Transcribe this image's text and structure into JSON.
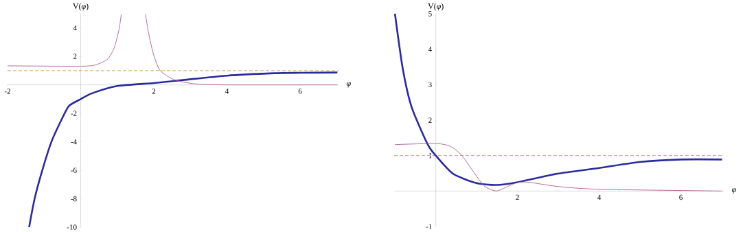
{
  "chart_data": [
    {
      "type": "line",
      "xlabel": "*φ*",
      "ylabel": "V(*φ*)",
      "xlim": [
        -2,
        7.05
      ],
      "ylim": [
        -10,
        5
      ],
      "xticks": [
        -2,
        2,
        4,
        6
      ],
      "yticks": [
        -10,
        -8,
        -6,
        -4,
        -2,
        2,
        4
      ],
      "grid": false,
      "legend": false,
      "series": [
        {
          "color": "#2b2b9c",
          "x": [
            -1.41,
            -1.26,
            -1.05,
            -0.8,
            -0.51,
            -0.32,
            0,
            0.3,
            1.0,
            2.0,
            2.8,
            4.0,
            5.29,
            6.0,
            7.02
          ],
          "values": [
            -10,
            -8.0,
            -6.0,
            -4.0,
            -2.37,
            -1.48,
            -1.0,
            -0.6,
            -0.08,
            0.13,
            0.34,
            0.65,
            0.82,
            0.85,
            0.87
          ]
        },
        {
          "color": "#b05a8f",
          "x": [
            -2,
            0,
            0.42,
            0.74,
            0.92,
            1.05,
            1.11,
            1.4,
            1.77,
            1.86,
            1.99,
            2.17,
            2.55,
            3.1,
            4.0,
            7.02
          ],
          "values": [
            1.34,
            1.31,
            1.42,
            1.82,
            2.63,
            3.92,
            4.97,
            null,
            4.97,
            3.6,
            2.15,
            1.02,
            0.37,
            0.08,
            0,
            0
          ]
        }
      ],
      "ref_lines": [
        {
          "axis": "y",
          "value": 1,
          "color": "#c8a656",
          "line_style": "dashed"
        }
      ]
    },
    {
      "type": "line",
      "xlabel": "*φ*",
      "ylabel": "V(*φ*)",
      "xlim": [
        -1.02,
        7.05
      ],
      "ylim": [
        -1,
        5
      ],
      "xticks": [
        2,
        4,
        6
      ],
      "yticks": [
        -1,
        1,
        2,
        3,
        4,
        5
      ],
      "grid": false,
      "legend": false,
      "series": [
        {
          "color": "#2b2b9c",
          "x": [
            -1.0,
            -0.81,
            -0.59,
            -0.2,
            0,
            0.42,
            0.98,
            1.48,
            2.0,
            2.98,
            4.0,
            4.99,
            6.0,
            7.01
          ],
          "values": [
            5,
            3.46,
            2.36,
            1.32,
            1.0,
            0.49,
            0.23,
            0.17,
            0.25,
            0.49,
            0.65,
            0.82,
            0.89,
            0.89
          ]
        },
        {
          "color": "#b05a8f",
          "x": [
            -1.0,
            0,
            0.36,
            0.64,
            0.98,
            1.2,
            1.48,
            1.76,
            2.0,
            2.26,
            2.98,
            4.0,
            7.01
          ],
          "values": [
            1.31,
            1.34,
            1.26,
            1.0,
            0.45,
            0.13,
            0,
            0.13,
            0.24,
            0.25,
            0.13,
            0.05,
            0
          ]
        }
      ],
      "ref_lines": [
        {
          "axis": "y",
          "value": 1,
          "color": "#c8a656",
          "line_style": "dashed"
        }
      ]
    }
  ]
}
